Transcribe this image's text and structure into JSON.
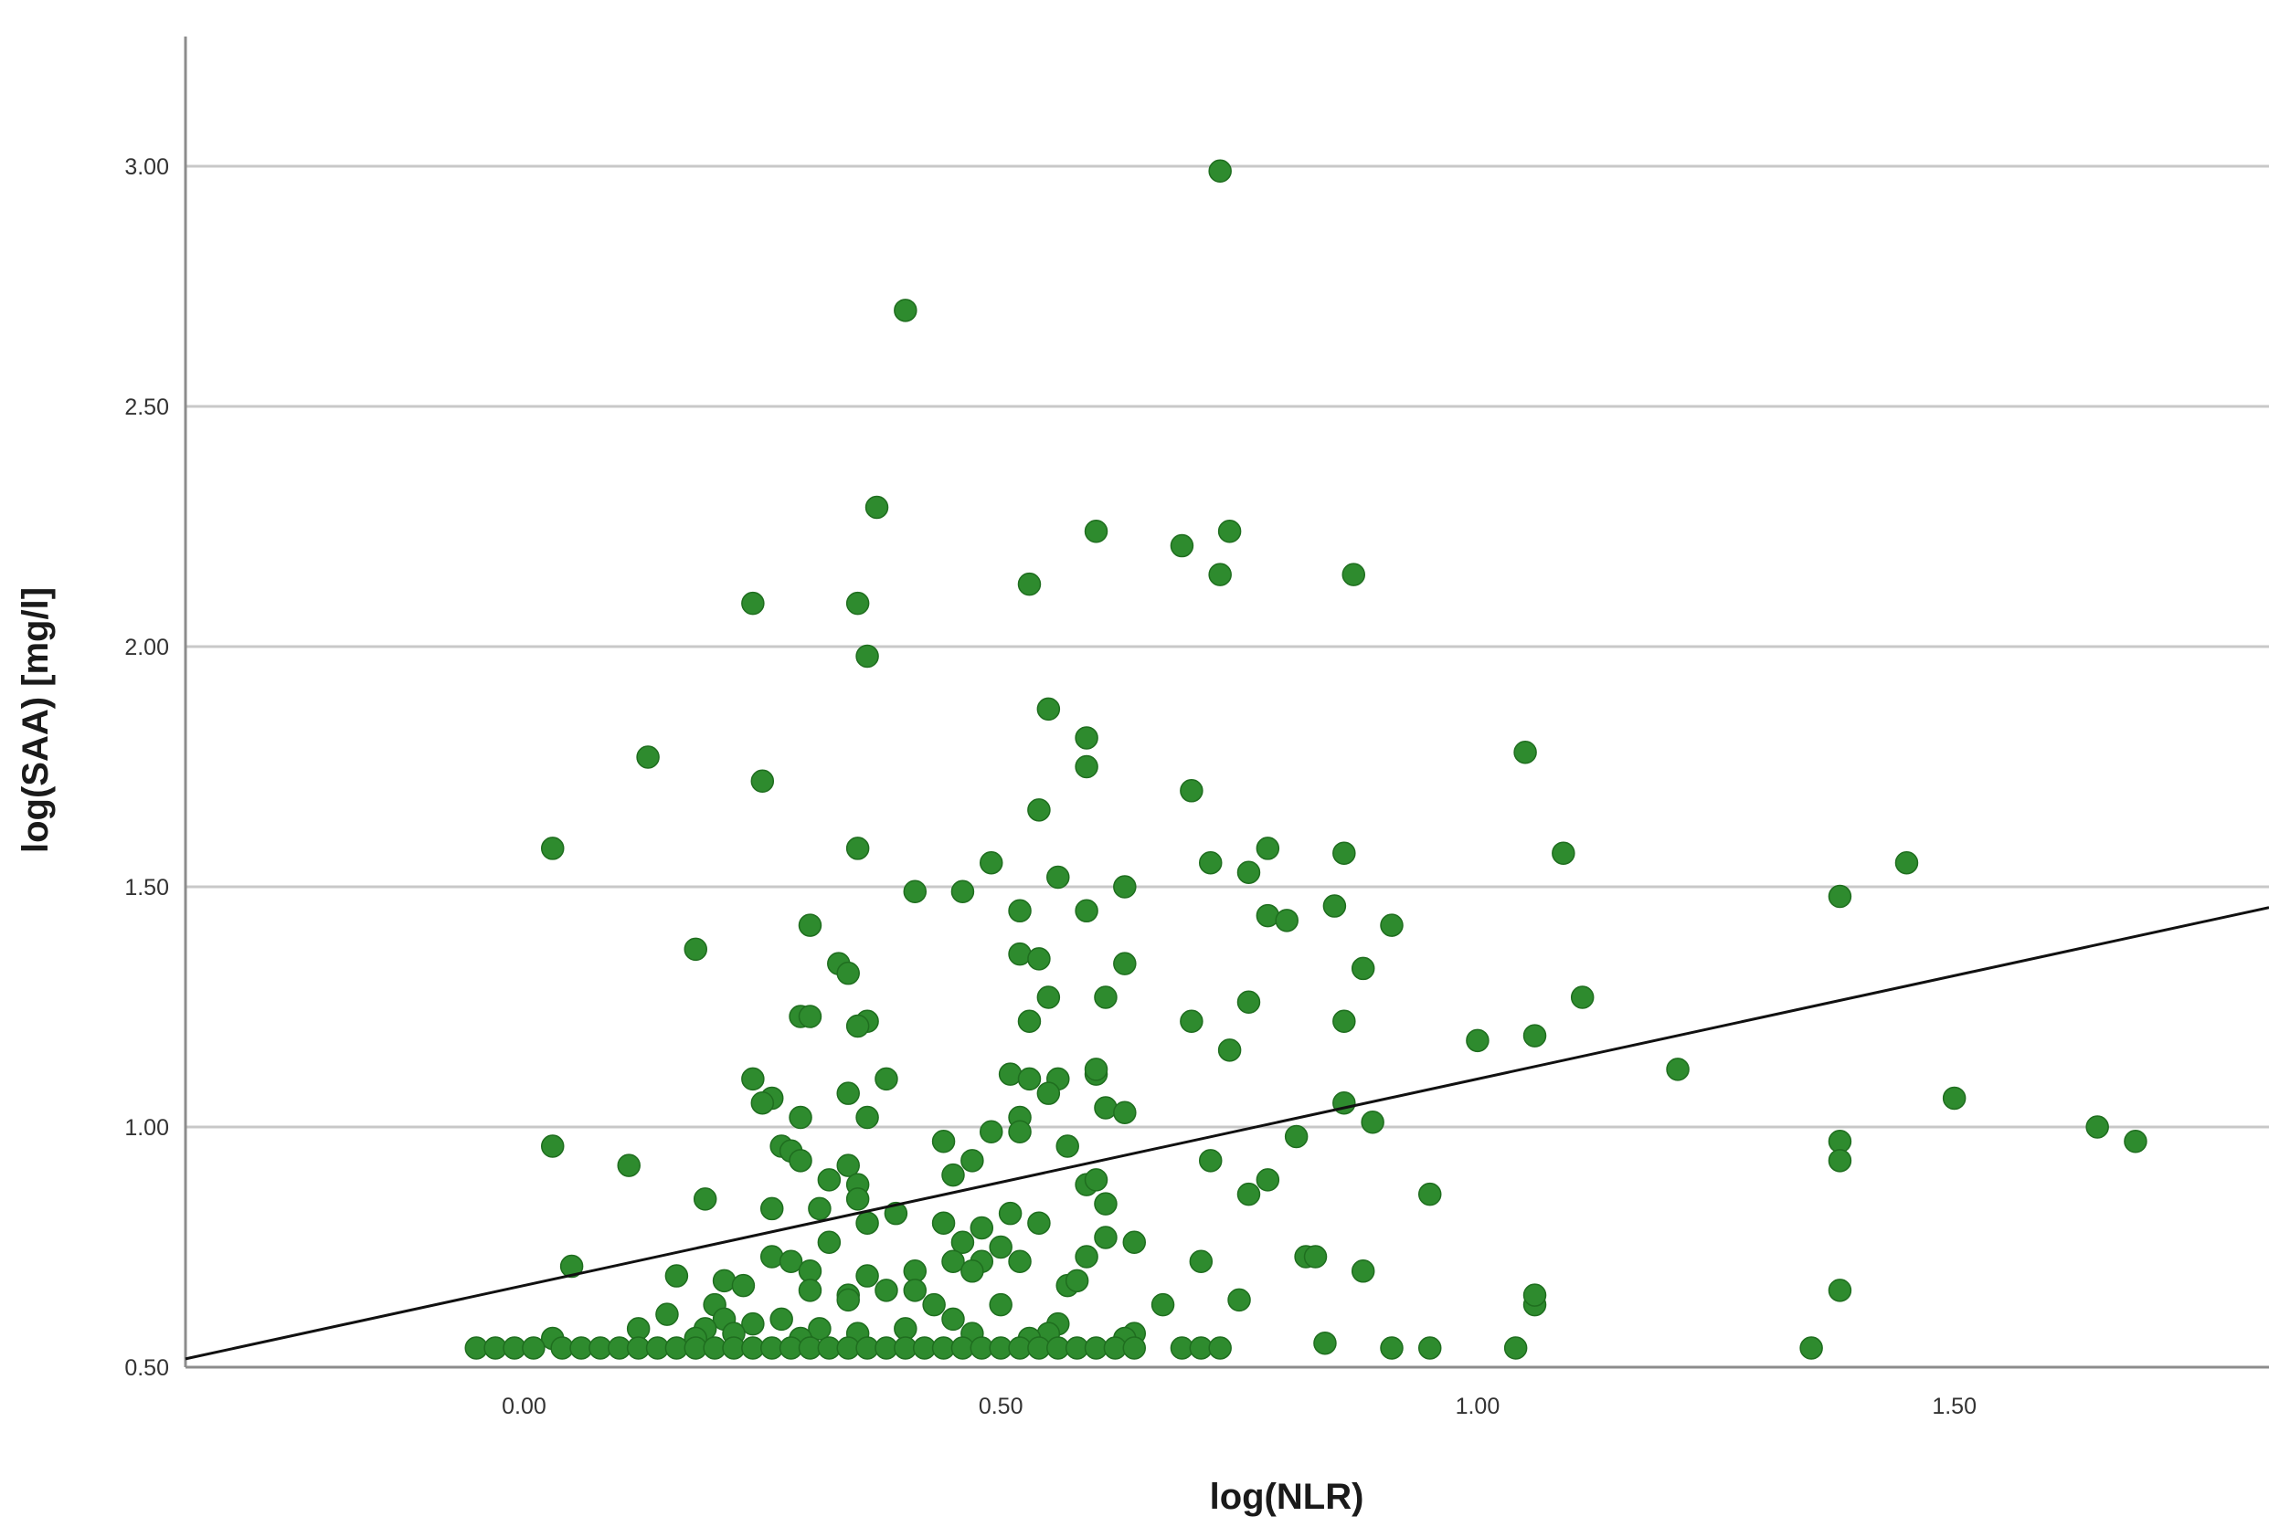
{
  "chart_data": {
    "type": "scatter",
    "title": "",
    "xlabel": "log(NLR)",
    "ylabel": "log(SAA) [mg/l]",
    "xlim": [
      -0.355,
      1.83
    ],
    "ylim": [
      0.5,
      3.27
    ],
    "x_ticks": [
      {
        "value": 0.0,
        "label": "0.00"
      },
      {
        "value": 0.5,
        "label": "0.50"
      },
      {
        "value": 1.0,
        "label": "1.00"
      },
      {
        "value": 1.5,
        "label": "1.50"
      }
    ],
    "y_ticks": [
      {
        "value": 0.5,
        "label": "0.50"
      },
      {
        "value": 1.0,
        "label": "1.00"
      },
      {
        "value": 1.5,
        "label": "1.50"
      },
      {
        "value": 2.0,
        "label": "2.00"
      },
      {
        "value": 2.5,
        "label": "2.50"
      },
      {
        "value": 3.0,
        "label": "3.00"
      }
    ],
    "grid": true,
    "point_color": "#2e8b2e",
    "fit_line": {
      "intercept": 0.67,
      "slope": 0.43
    },
    "points": [
      [
        0.73,
        2.99
      ],
      [
        0.4,
        2.7
      ],
      [
        0.37,
        2.29
      ],
      [
        0.6,
        2.24
      ],
      [
        0.74,
        2.24
      ],
      [
        0.69,
        2.21
      ],
      [
        0.73,
        2.15
      ],
      [
        0.87,
        2.15
      ],
      [
        0.53,
        2.13
      ],
      [
        0.24,
        2.09
      ],
      [
        0.35,
        2.09
      ],
      [
        0.36,
        1.98
      ],
      [
        0.55,
        1.87
      ],
      [
        0.59,
        1.81
      ],
      [
        0.13,
        1.77
      ],
      [
        1.05,
        1.78
      ],
      [
        0.59,
        1.75
      ],
      [
        0.25,
        1.72
      ],
      [
        0.7,
        1.7
      ],
      [
        0.54,
        1.66
      ],
      [
        0.03,
        1.58
      ],
      [
        0.35,
        1.58
      ],
      [
        0.78,
        1.58
      ],
      [
        0.86,
        1.57
      ],
      [
        1.09,
        1.57
      ],
      [
        0.49,
        1.55
      ],
      [
        0.72,
        1.55
      ],
      [
        1.45,
        1.55
      ],
      [
        0.76,
        1.53
      ],
      [
        0.56,
        1.52
      ],
      [
        0.41,
        1.49
      ],
      [
        0.46,
        1.49
      ],
      [
        0.63,
        1.5
      ],
      [
        0.52,
        1.45
      ],
      [
        0.59,
        1.45
      ],
      [
        0.85,
        1.46
      ],
      [
        1.38,
        1.48
      ],
      [
        0.78,
        1.44
      ],
      [
        0.8,
        1.43
      ],
      [
        0.91,
        1.42
      ],
      [
        0.3,
        1.42
      ],
      [
        0.18,
        1.37
      ],
      [
        0.52,
        1.36
      ],
      [
        0.54,
        1.35
      ],
      [
        0.33,
        1.34
      ],
      [
        0.34,
        1.32
      ],
      [
        0.63,
        1.34
      ],
      [
        0.88,
        1.33
      ],
      [
        0.55,
        1.27
      ],
      [
        0.61,
        1.27
      ],
      [
        0.76,
        1.26
      ],
      [
        1.11,
        1.27
      ],
      [
        0.29,
        1.23
      ],
      [
        0.3,
        1.23
      ],
      [
        0.36,
        1.22
      ],
      [
        0.35,
        1.21
      ],
      [
        0.53,
        1.22
      ],
      [
        0.7,
        1.22
      ],
      [
        0.86,
        1.22
      ],
      [
        1.0,
        1.18
      ],
      [
        1.06,
        1.19
      ],
      [
        0.74,
        1.16
      ],
      [
        0.51,
        1.11
      ],
      [
        0.24,
        1.1
      ],
      [
        0.38,
        1.1
      ],
      [
        0.53,
        1.1
      ],
      [
        0.56,
        1.1
      ],
      [
        0.6,
        1.11
      ],
      [
        0.6,
        1.12
      ],
      [
        1.21,
        1.12
      ],
      [
        0.26,
        1.06
      ],
      [
        0.34,
        1.07
      ],
      [
        0.25,
        1.05
      ],
      [
        0.55,
        1.07
      ],
      [
        0.86,
        1.05
      ],
      [
        1.5,
        1.06
      ],
      [
        0.29,
        1.02
      ],
      [
        0.36,
        1.02
      ],
      [
        0.52,
        1.02
      ],
      [
        0.61,
        1.04
      ],
      [
        0.63,
        1.03
      ],
      [
        0.89,
        1.01
      ],
      [
        1.65,
        1.0
      ],
      [
        0.52,
        0.99
      ],
      [
        0.49,
        0.99
      ],
      [
        0.44,
        0.97
      ],
      [
        0.03,
        0.96
      ],
      [
        0.27,
        0.96
      ],
      [
        0.28,
        0.95
      ],
      [
        0.57,
        0.96
      ],
      [
        0.81,
        0.98
      ],
      [
        1.38,
        0.97
      ],
      [
        1.69,
        0.97
      ],
      [
        0.29,
        0.93
      ],
      [
        0.47,
        0.93
      ],
      [
        0.11,
        0.92
      ],
      [
        0.34,
        0.92
      ],
      [
        0.45,
        0.9
      ],
      [
        0.72,
        0.93
      ],
      [
        1.38,
        0.93
      ],
      [
        0.32,
        0.89
      ],
      [
        0.35,
        0.88
      ],
      [
        0.59,
        0.88
      ],
      [
        0.6,
        0.89
      ],
      [
        0.78,
        0.89
      ],
      [
        0.19,
        0.85
      ],
      [
        0.35,
        0.85
      ],
      [
        0.61,
        0.84
      ],
      [
        0.76,
        0.86
      ],
      [
        0.95,
        0.86
      ],
      [
        0.26,
        0.83
      ],
      [
        0.31,
        0.83
      ],
      [
        0.39,
        0.82
      ],
      [
        0.51,
        0.82
      ],
      [
        0.36,
        0.8
      ],
      [
        0.44,
        0.8
      ],
      [
        0.48,
        0.79
      ],
      [
        0.54,
        0.8
      ],
      [
        0.32,
        0.76
      ],
      [
        0.46,
        0.76
      ],
      [
        0.5,
        0.75
      ],
      [
        0.61,
        0.77
      ],
      [
        0.64,
        0.76
      ],
      [
        0.26,
        0.73
      ],
      [
        0.28,
        0.72
      ],
      [
        0.45,
        0.72
      ],
      [
        0.48,
        0.72
      ],
      [
        0.52,
        0.72
      ],
      [
        0.59,
        0.73
      ],
      [
        0.71,
        0.72
      ],
      [
        0.82,
        0.73
      ],
      [
        0.83,
        0.73
      ],
      [
        0.05,
        0.71
      ],
      [
        0.16,
        0.69
      ],
      [
        0.3,
        0.7
      ],
      [
        0.36,
        0.69
      ],
      [
        0.41,
        0.7
      ],
      [
        0.47,
        0.7
      ],
      [
        0.88,
        0.7
      ],
      [
        0.21,
        0.68
      ],
      [
        0.23,
        0.67
      ],
      [
        0.3,
        0.66
      ],
      [
        0.34,
        0.65
      ],
      [
        0.38,
        0.66
      ],
      [
        0.41,
        0.66
      ],
      [
        0.57,
        0.67
      ],
      [
        0.58,
        0.68
      ],
      [
        0.2,
        0.63
      ],
      [
        0.34,
        0.64
      ],
      [
        0.43,
        0.63
      ],
      [
        0.5,
        0.63
      ],
      [
        0.67,
        0.63
      ],
      [
        0.75,
        0.64
      ],
      [
        1.06,
        0.63
      ],
      [
        1.06,
        0.65
      ],
      [
        1.38,
        0.66
      ],
      [
        0.15,
        0.61
      ],
      [
        0.21,
        0.6
      ],
      [
        0.27,
        0.6
      ],
      [
        0.45,
        0.6
      ],
      [
        0.56,
        0.59
      ],
      [
        0.12,
        0.58
      ],
      [
        0.19,
        0.58
      ],
      [
        0.24,
        0.59
      ],
      [
        0.31,
        0.58
      ],
      [
        0.35,
        0.57
      ],
      [
        0.4,
        0.58
      ],
      [
        0.47,
        0.57
      ],
      [
        0.55,
        0.57
      ],
      [
        0.64,
        0.57
      ],
      [
        0.03,
        0.56
      ],
      [
        0.18,
        0.56
      ],
      [
        0.22,
        0.57
      ],
      [
        0.29,
        0.56
      ],
      [
        0.53,
        0.56
      ],
      [
        0.63,
        0.56
      ],
      [
        0.84,
        0.55
      ],
      [
        -0.05,
        0.54
      ],
      [
        -0.03,
        0.54
      ],
      [
        -0.01,
        0.54
      ],
      [
        0.01,
        0.54
      ],
      [
        0.04,
        0.54
      ],
      [
        0.06,
        0.54
      ],
      [
        0.08,
        0.54
      ],
      [
        0.1,
        0.54
      ],
      [
        0.12,
        0.54
      ],
      [
        0.14,
        0.54
      ],
      [
        0.16,
        0.54
      ],
      [
        0.18,
        0.54
      ],
      [
        0.2,
        0.54
      ],
      [
        0.22,
        0.54
      ],
      [
        0.24,
        0.54
      ],
      [
        0.26,
        0.54
      ],
      [
        0.28,
        0.54
      ],
      [
        0.3,
        0.54
      ],
      [
        0.32,
        0.54
      ],
      [
        0.34,
        0.54
      ],
      [
        0.36,
        0.54
      ],
      [
        0.38,
        0.54
      ],
      [
        0.4,
        0.54
      ],
      [
        0.42,
        0.54
      ],
      [
        0.44,
        0.54
      ],
      [
        0.46,
        0.54
      ],
      [
        0.48,
        0.54
      ],
      [
        0.5,
        0.54
      ],
      [
        0.52,
        0.54
      ],
      [
        0.54,
        0.54
      ],
      [
        0.56,
        0.54
      ],
      [
        0.58,
        0.54
      ],
      [
        0.6,
        0.54
      ],
      [
        0.62,
        0.54
      ],
      [
        0.64,
        0.54
      ],
      [
        0.69,
        0.54
      ],
      [
        0.71,
        0.54
      ],
      [
        0.73,
        0.54
      ],
      [
        0.91,
        0.54
      ],
      [
        0.95,
        0.54
      ],
      [
        1.04,
        0.54
      ],
      [
        1.35,
        0.54
      ]
    ]
  }
}
